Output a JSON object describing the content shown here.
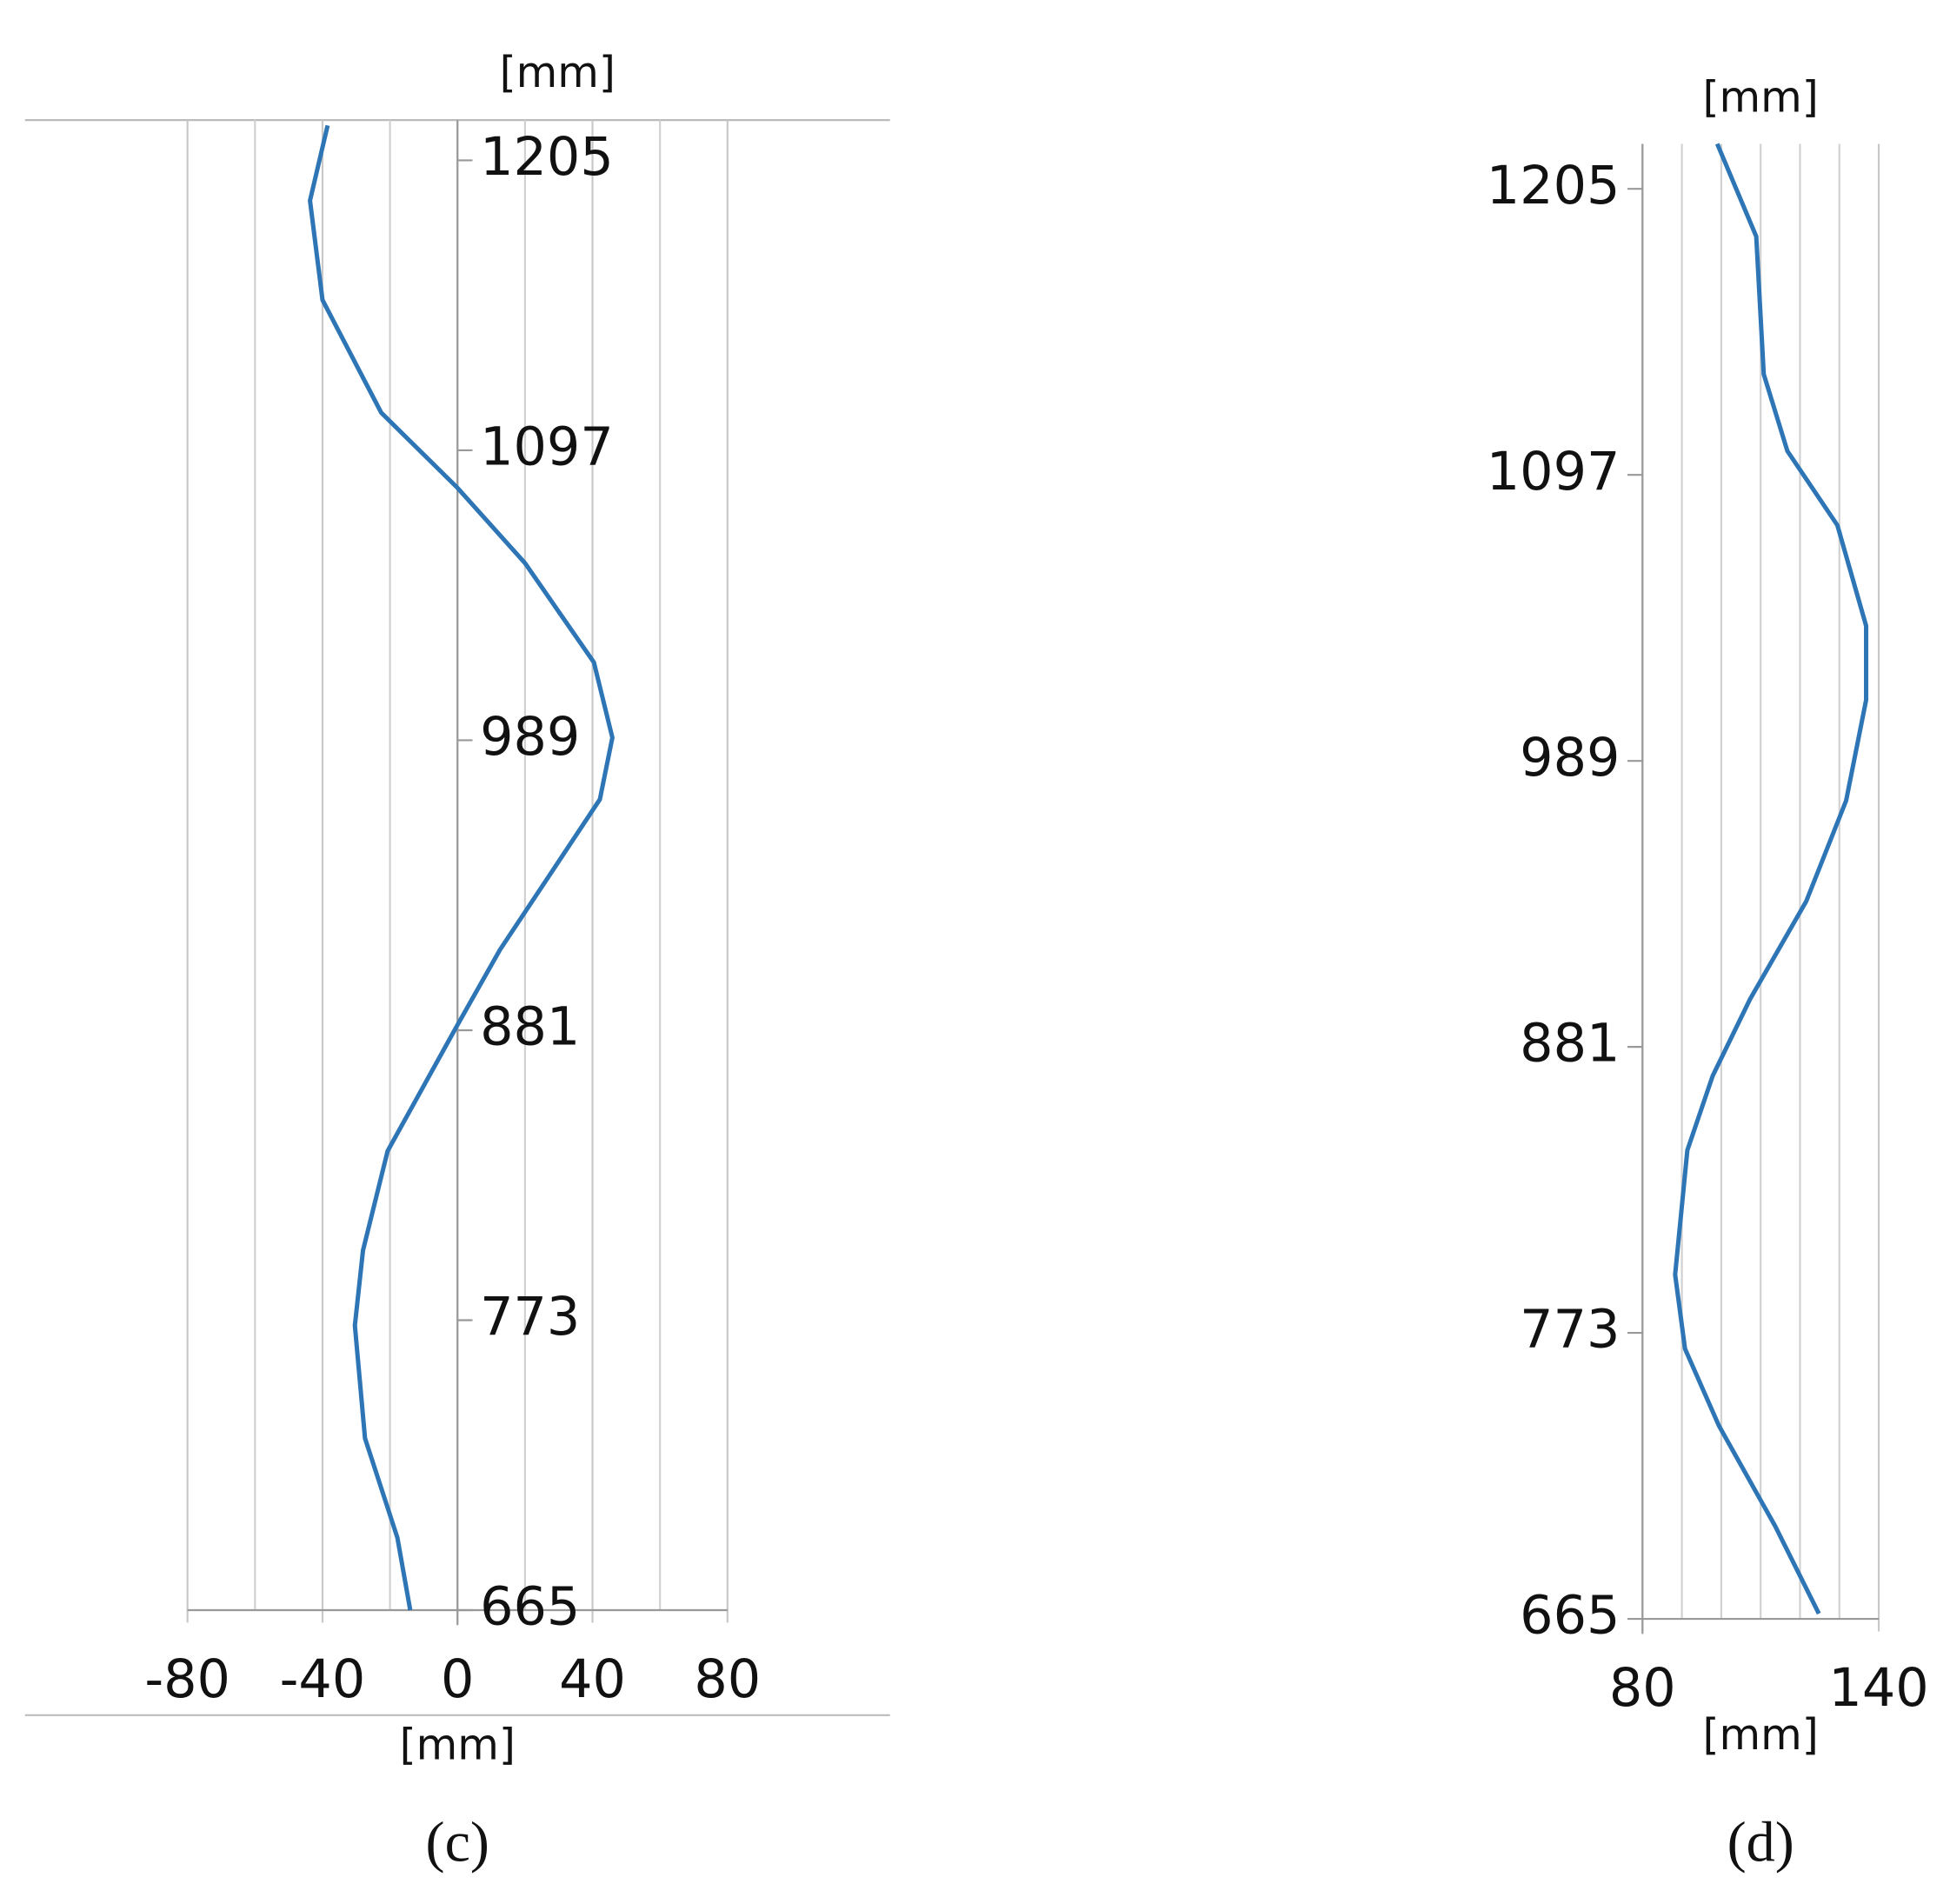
{
  "chart_data": [
    {
      "type": "line",
      "caption": "(c)",
      "x_label": "[mm]",
      "y_label": "[mm]",
      "xlim": [
        -80,
        80
      ],
      "xticks": [
        -80,
        -40,
        0,
        40,
        80
      ],
      "xgrid_minor": [
        -60,
        -20,
        20,
        60
      ],
      "ylim": [
        665,
        1220
      ],
      "yticks": [
        665,
        773,
        881,
        989,
        1097,
        1205
      ],
      "ytick_side": "right",
      "grid": true,
      "series": [
        {
          "color": "#2e75b6",
          "x": [
            -38.5,
            -43.7,
            -40,
            -22.6,
            0,
            20,
            40.4,
            45.9,
            42.2,
            27.4,
            12.6,
            0,
            -20.7,
            -28,
            -30.4,
            -27.4,
            -17.8,
            -14
          ],
          "y": [
            1218,
            1190,
            1153,
            1111,
            1083,
            1055,
            1018,
            990,
            967,
            939,
            911,
            883,
            836,
            799,
            771,
            729,
            692,
            665
          ]
        }
      ]
    },
    {
      "type": "line",
      "caption": "(d)",
      "x_label": "[mm]",
      "y_label": "[mm]",
      "xlim": [
        80,
        140
      ],
      "xticks": [
        80,
        140
      ],
      "xgrid_minor": [
        90,
        100,
        110,
        120,
        130
      ],
      "ylim": [
        665,
        1222
      ],
      "yticks": [
        665,
        773,
        881,
        989,
        1097,
        1205
      ],
      "ytick_side": "left",
      "grid": true,
      "series": [
        {
          "color": "#2e75b6",
          "x": [
            99,
            108.9,
            110.8,
            116.8,
            129.5,
            136.8,
            136.8,
            131.7,
            121.6,
            107.3,
            97.8,
            91.4,
            88.3,
            90.8,
            99.4,
            113.7,
            124.8
          ],
          "y": [
            1222,
            1187,
            1135,
            1106,
            1078,
            1040,
            1012,
            974,
            936,
            899,
            870,
            842,
            795,
            767,
            738,
            700,
            667
          ]
        }
      ]
    }
  ]
}
